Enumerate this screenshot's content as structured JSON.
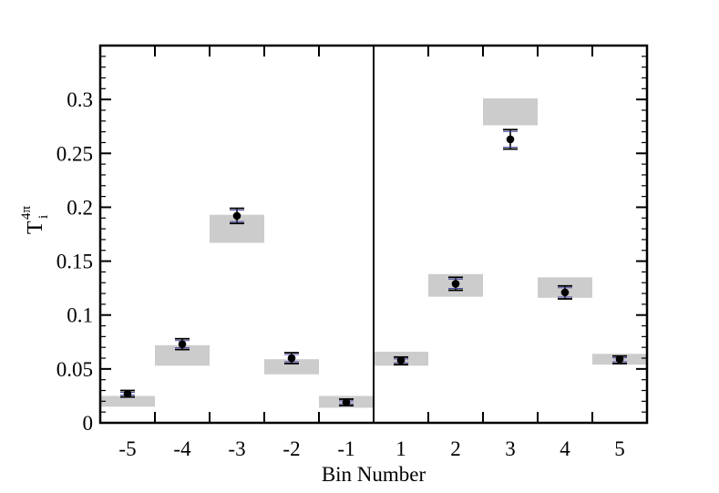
{
  "chart_data": {
    "type": "scatter",
    "xlabel": "Bin Number",
    "ylabel": {
      "main": "T",
      "sub": "i",
      "sup": "4π"
    },
    "ylim": [
      0,
      0.35
    ],
    "yticks": [
      0,
      0.05,
      0.1,
      0.15,
      0.2,
      0.25,
      0.3
    ],
    "ytick_labels": [
      "0",
      "0.05",
      "0.1",
      "0.15",
      "0.2",
      "0.25",
      "0.3"
    ],
    "categories": [
      "-5",
      "-4",
      "-3",
      "-2",
      "-1",
      "1",
      "2",
      "3",
      "4",
      "5"
    ],
    "points": [
      {
        "bin": "-5",
        "y": 0.027,
        "err_lo": 0.024,
        "err_hi": 0.03,
        "band": [
          0.015,
          0.025
        ]
      },
      {
        "bin": "-4",
        "y": 0.073,
        "err_lo": 0.068,
        "err_hi": 0.078,
        "band": [
          0.053,
          0.072
        ]
      },
      {
        "bin": "-3",
        "y": 0.192,
        "err_lo": 0.185,
        "err_hi": 0.199,
        "band": [
          0.167,
          0.193
        ]
      },
      {
        "bin": "-2",
        "y": 0.06,
        "err_lo": 0.055,
        "err_hi": 0.065,
        "band": [
          0.045,
          0.059
        ]
      },
      {
        "bin": "-1",
        "y": 0.019,
        "err_lo": 0.016,
        "err_hi": 0.022,
        "band": [
          0.014,
          0.025
        ]
      },
      {
        "bin": "1",
        "y": 0.058,
        "err_lo": 0.054,
        "err_hi": 0.061,
        "band": [
          0.053,
          0.066
        ]
      },
      {
        "bin": "2",
        "y": 0.129,
        "err_lo": 0.123,
        "err_hi": 0.135,
        "band": [
          0.117,
          0.138
        ]
      },
      {
        "bin": "3",
        "y": 0.263,
        "err_lo": 0.254,
        "err_hi": 0.272,
        "band": [
          0.276,
          0.301
        ]
      },
      {
        "bin": "4",
        "y": 0.121,
        "err_lo": 0.115,
        "err_hi": 0.127,
        "band": [
          0.116,
          0.135
        ]
      },
      {
        "bin": "5",
        "y": 0.059,
        "err_lo": 0.055,
        "err_hi": 0.062,
        "band": [
          0.054,
          0.064
        ]
      }
    ],
    "divider_between_bins": [
      "-1",
      "1"
    ],
    "band_color": "#cccccc",
    "marker_color": "#000000",
    "errorbar_color": "#000000",
    "errorbar_edge_color": "#4a4aa8",
    "grid": false,
    "legend": "none"
  }
}
